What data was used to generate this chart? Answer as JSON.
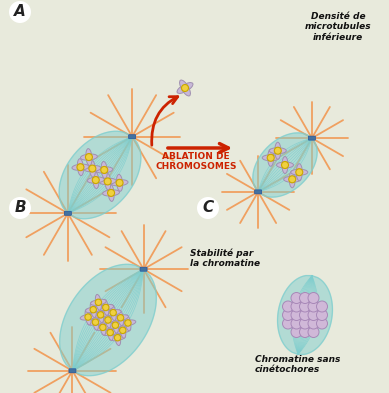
{
  "bg_color": "#e8eadc",
  "spindle_color": "#7ecece",
  "spindle_alpha": 0.5,
  "chr_color": "#c8b8d8",
  "chr_outline": "#a090b0",
  "kinetochore_color": "#f0d040",
  "kinetochore_outline": "#c8a800",
  "pole_color": "#4472a0",
  "aster_color": "#f0a060",
  "arrow_color": "#cc2200",
  "text_ablation": "ABLATION DE\nCHROMOSOMES",
  "text_densite": "Densité de\nmicrotubules\ninférieure",
  "text_stabilite": "Stabilité par\nla chromatine",
  "text_chromatine": "Chromatine sans\ncinétochores",
  "label_A": "A",
  "label_B": "B",
  "label_C": "C"
}
